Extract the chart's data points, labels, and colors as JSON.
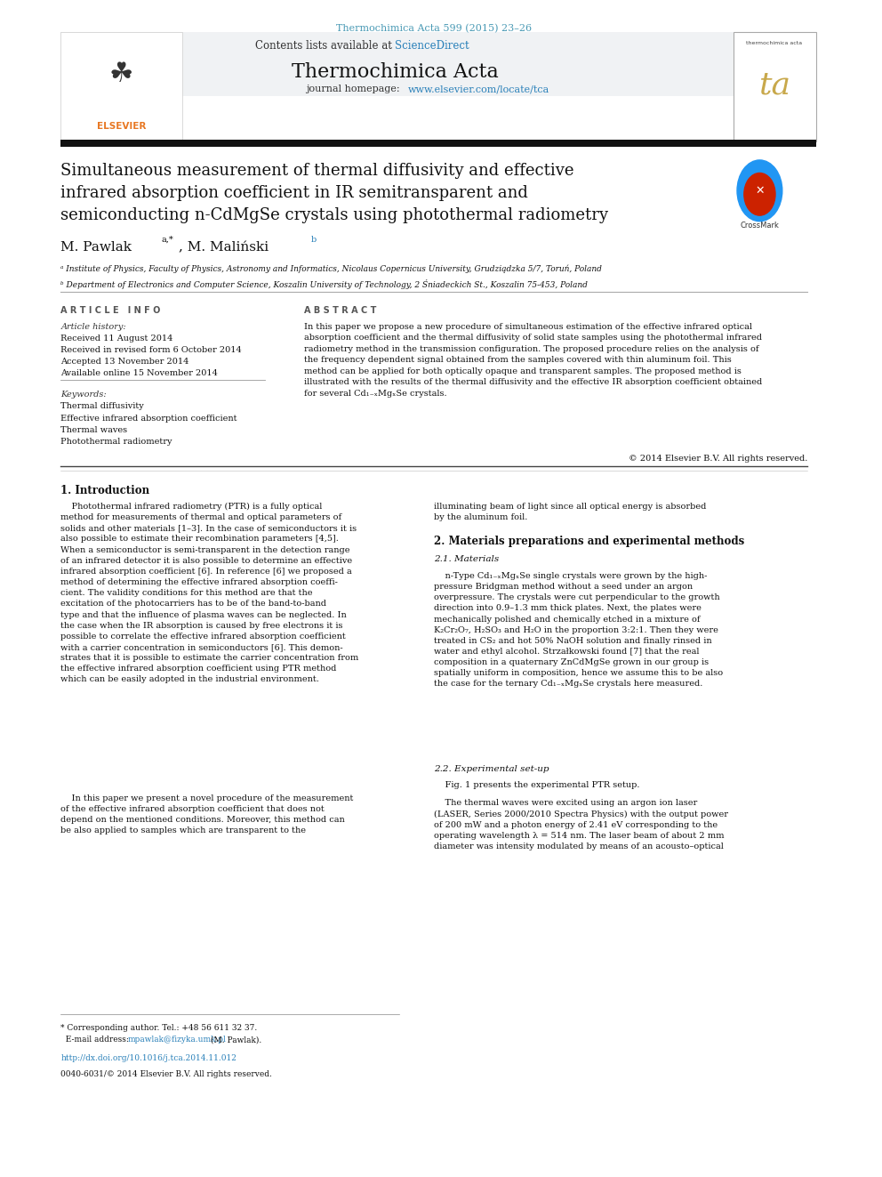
{
  "journal_citation": "Thermochimica Acta 599 (2015) 23–26",
  "journal_name": "Thermochimica Acta",
  "contents_line": "Contents lists available at ScienceDirect",
  "homepage_line": "journal homepage: www.elsevier.com/locate/tca",
  "title_line1": "Simultaneous measurement of thermal diffusivity and effective",
  "title_line2": "infrared absorption coefficient in IR semitransparent and",
  "title_line3": "semiconducting n-CdMgSe crystals using photothermal radiometry",
  "authors": "M. Pawlak a,*, M. Maliński b",
  "affil_a": "ᵃ Institute of Physics, Faculty of Physics, Astronomy and Informatics, Nicolaus Copernicus University, Grudziądzka 5/7, Toruń, Poland",
  "affil_b": "ᵇ Department of Electronics and Computer Science, Koszalin University of Technology, 2 Śniadeckich St., Koszalin 75-453, Poland",
  "article_info_header": "A R T I C L E   I N F O",
  "abstract_header": "A B S T R A C T",
  "article_history_header": "Article history:",
  "received": "Received 11 August 2014",
  "revised": "Received in revised form 6 October 2014",
  "accepted": "Accepted 13 November 2014",
  "online": "Available online 15 November 2014",
  "keywords_header": "Keywords:",
  "kw1": "Thermal diffusivity",
  "kw2": "Effective infrared absorption coefficient",
  "kw3": "Thermal waves",
  "kw4": "Photothermal radiometry",
  "copyright": "© 2014 Elsevier B.V. All rights reserved.",
  "intro_header": "1. Introduction",
  "right_col_top": "illuminating beam of light since all optical energy is absorbed\nby the aluminum foil.",
  "section2_header": "2. Materials preparations and experimental methods",
  "section21_header": "2.1. Materials",
  "section22_header": "2.2. Experimental set-up",
  "doi_text": "http://dx.doi.org/10.1016/j.tca.2014.11.012",
  "footer_text": "0040-6031/© 2014 Elsevier B.V. All rights reserved.",
  "bg_color": "#ffffff",
  "text_color": "#000000",
  "link_color": "#2980b9",
  "citation_color": "#4a9ab5"
}
